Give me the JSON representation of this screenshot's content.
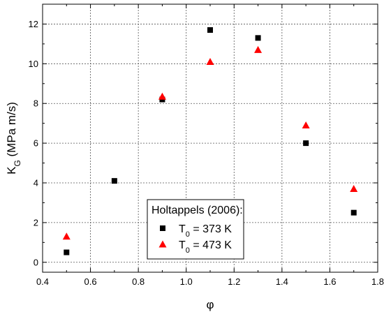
{
  "chart_data": {
    "type": "scatter",
    "xlabel": "φ",
    "ylabel": {
      "main": "K",
      "sub": "G",
      "rest": " (MPa m/s)"
    },
    "xlim": [
      0.4,
      1.8
    ],
    "ylim": [
      -0.5,
      13
    ],
    "x_ticks": [
      0.4,
      0.6,
      0.8,
      1.0,
      1.2,
      1.4,
      1.6,
      1.8
    ],
    "x_tick_labels": [
      "0.4",
      "0.6",
      "0.8",
      "1.0",
      "1.2",
      "1.4",
      "1.6",
      "1.8"
    ],
    "y_ticks": [
      0,
      2,
      4,
      6,
      8,
      10,
      12
    ],
    "y_tick_labels": [
      "0",
      "2",
      "4",
      "6",
      "8",
      "10",
      "12"
    ],
    "grid": true,
    "legend": {
      "placement": "bottom-center",
      "title": "Holtappels (2006):",
      "entries": [
        {
          "main": "T",
          "sub": "0",
          "rest": " = 373 K"
        },
        {
          "main": "T",
          "sub": "0",
          "rest": " = 473 K"
        }
      ]
    },
    "series": [
      {
        "marker": "square",
        "color": "#000000",
        "x": [
          0.5,
          0.7,
          0.9,
          1.1,
          1.3,
          1.5,
          1.7
        ],
        "y": [
          0.5,
          4.1,
          8.2,
          11.7,
          11.3,
          6.0,
          2.5
        ]
      },
      {
        "marker": "triangle",
        "color": "#ff0000",
        "x": [
          0.5,
          0.9,
          1.1,
          1.3,
          1.5,
          1.7
        ],
        "y": [
          1.3,
          8.35,
          10.1,
          10.7,
          6.9,
          3.7
        ]
      }
    ]
  }
}
